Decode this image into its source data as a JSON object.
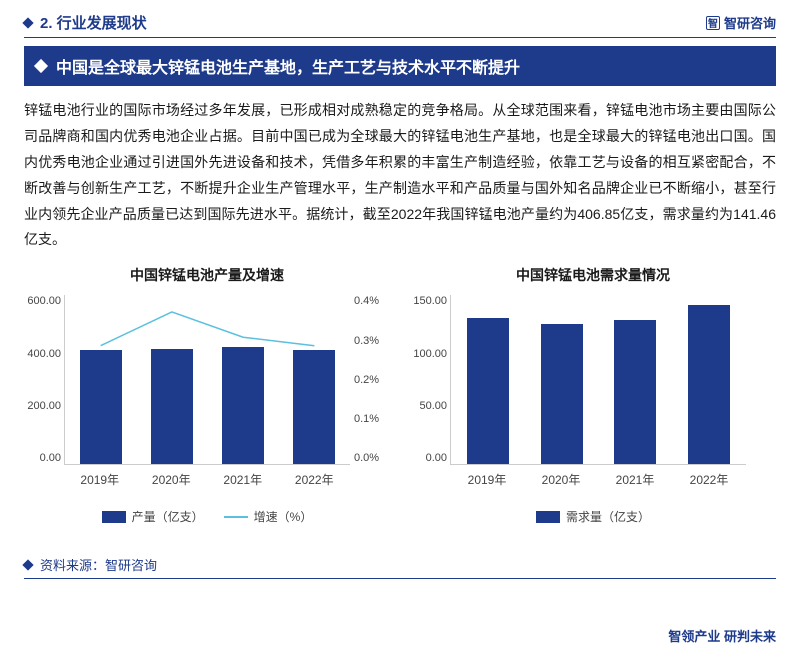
{
  "section": {
    "number": "2. 行业发展现状",
    "brand": "智研咨询"
  },
  "banner": {
    "title": "中国是全球最大锌锰电池生产基地，生产工艺与技术水平不断提升"
  },
  "paragraph": "锌锰电池行业的国际市场经过多年发展，已形成相对成熟稳定的竞争格局。从全球范围来看，锌锰电池市场主要由国际公司品牌商和国内优秀电池企业占据。目前中国已成为全球最大的锌锰电池生产基地，也是全球最大的锌锰电池出口国。国内优秀电池企业通过引进国外先进设备和技术，凭借多年积累的丰富生产制造经验，依靠工艺与设备的相互紧密配合，不断改善与创新生产工艺，不断提升企业生产管理水平，生产制造水平和产品质量与国外知名品牌企业已不断缩小，甚至行业内领先企业产品质量已达到国际先进水平。据统计，截至2022年我国锌锰电池产量约为406.85亿支，需求量约为141.46亿支。",
  "chart1": {
    "title": "中国锌锰电池产量及增速",
    "type": "bar+line",
    "y1": {
      "ticks": [
        "600.00",
        "400.00",
        "200.00",
        "0.00"
      ],
      "max": 600
    },
    "y2": {
      "ticks": [
        "0.4%",
        "0.3%",
        "0.2%",
        "0.1%",
        "0.0%"
      ],
      "max": 0.4
    },
    "categories": [
      "2019年",
      "2020年",
      "2021年",
      "2022年"
    ],
    "bar_values": [
      405,
      410,
      415,
      407
    ],
    "bar_color": "#1e3a8a",
    "line_values": [
      0.28,
      0.36,
      0.3,
      0.28
    ],
    "line_color": "#5bc0de",
    "legend": [
      {
        "type": "box",
        "label": "产量（亿支）"
      },
      {
        "type": "line",
        "label": "增速（%）"
      }
    ]
  },
  "chart2": {
    "title": "中国锌锰电池需求量情况",
    "type": "bar",
    "y1": {
      "ticks": [
        "150.00",
        "100.00",
        "50.00",
        "0.00"
      ],
      "max": 150
    },
    "categories": [
      "2019年",
      "2020年",
      "2021年",
      "2022年"
    ],
    "bar_values": [
      130,
      125,
      128,
      141
    ],
    "bar_color": "#1e3a8a",
    "legend": [
      {
        "type": "box",
        "label": "需求量（亿支）"
      }
    ]
  },
  "source": {
    "label": "资料来源：",
    "value": "智研咨询"
  },
  "footer": "智领产业 研判未来"
}
